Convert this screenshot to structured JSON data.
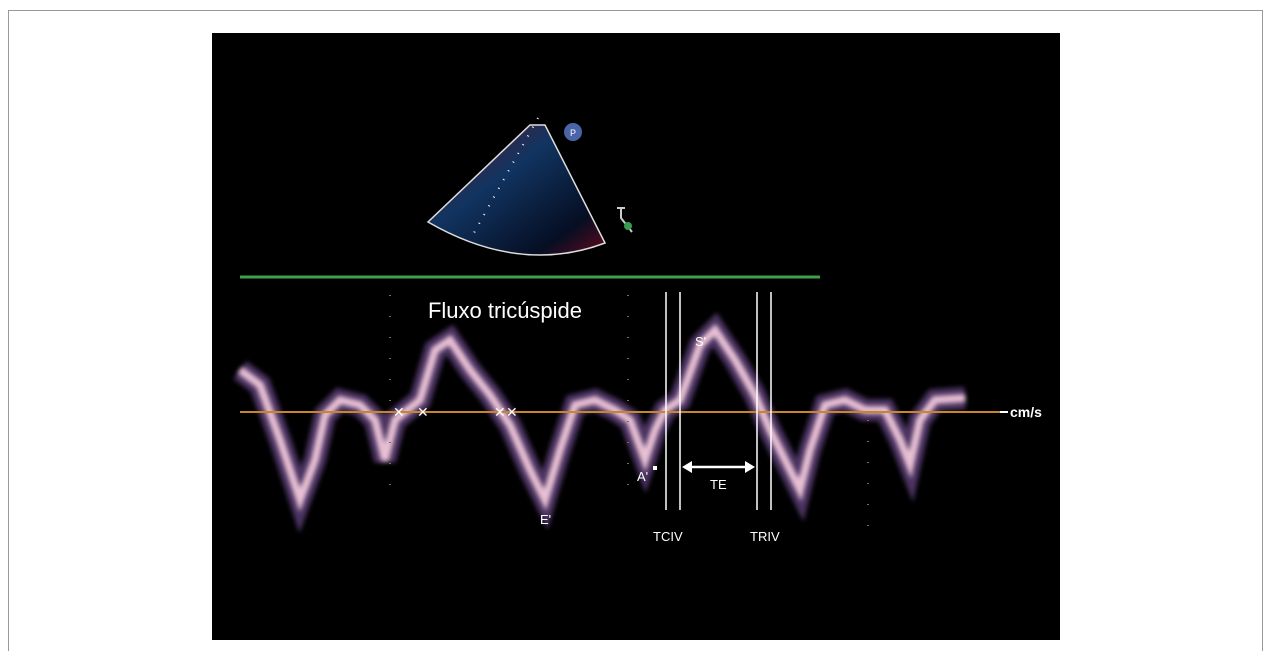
{
  "image": {
    "title": "Fluxo tricúspide",
    "probe_marker": "P",
    "unit": "cm/s",
    "labels": {
      "s_wave": "S'",
      "a_wave": "A'",
      "e_wave": "E'",
      "ejection_time": "TE",
      "tciv": "TCIV",
      "triv": "TRIV"
    }
  }
}
